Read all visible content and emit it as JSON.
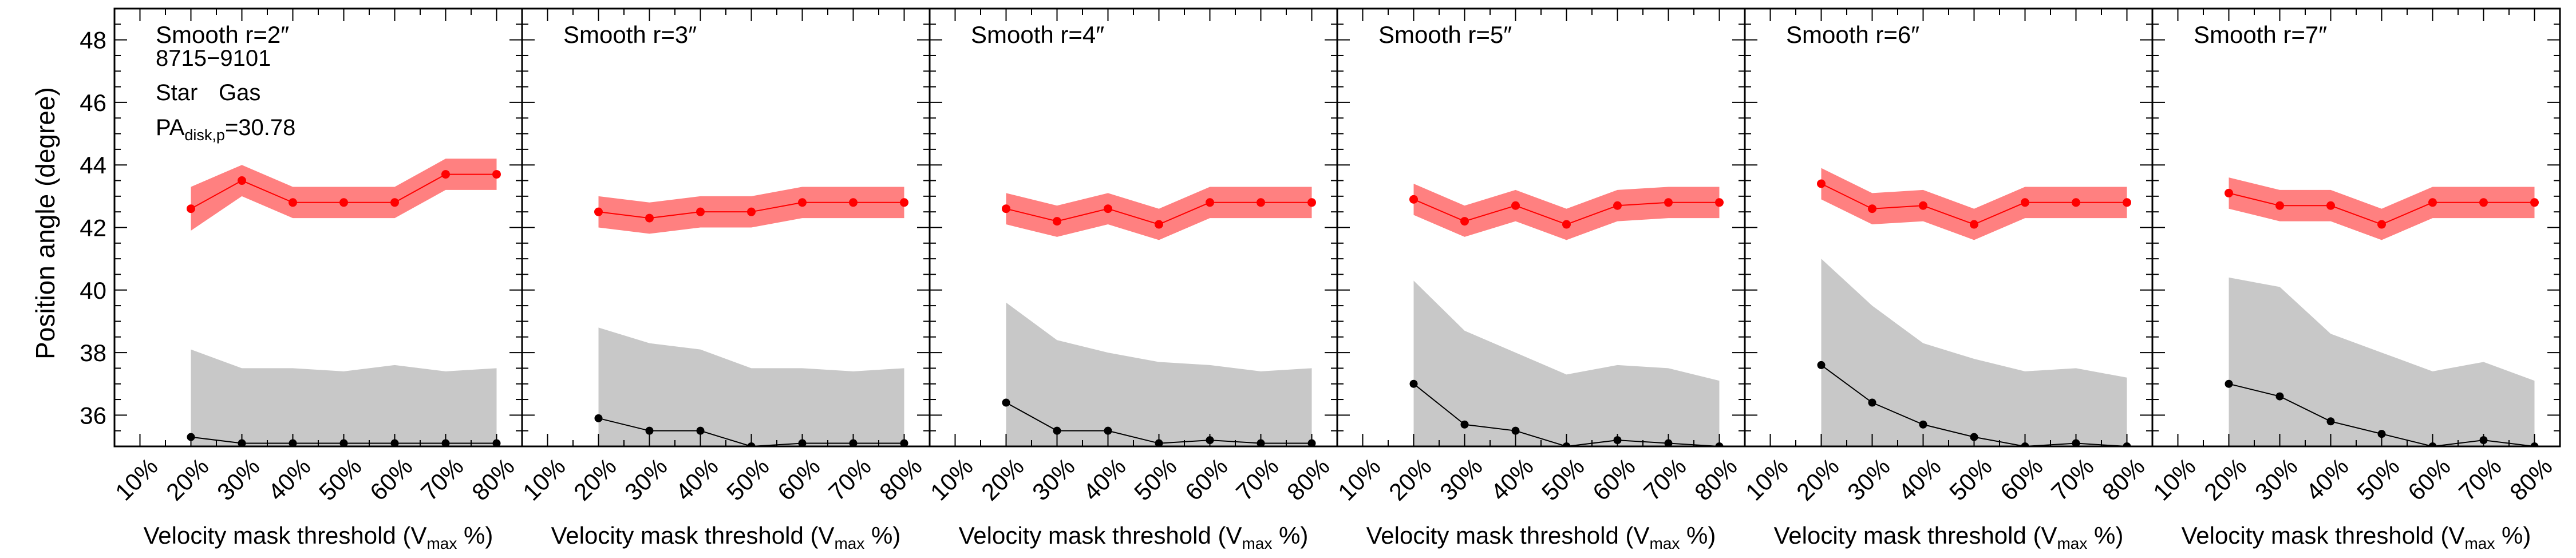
{
  "figure": {
    "ylabel": "Position angle (degree)",
    "xlabel_main": "Velocity mask threshold (V",
    "xlabel_sub": "max",
    "xlabel_end": " %)",
    "info": {
      "id": "8715−9101",
      "star": "Star",
      "gas": "Gas",
      "pa_main": "PA",
      "pa_sub": "disk,p",
      "pa_value": "=30.78"
    },
    "colors": {
      "gas": "#ff0000",
      "gas_band": "#ff8080",
      "star": "#000000",
      "star_band": "#c8c8c8"
    }
  },
  "chart_data": [
    {
      "type": "line",
      "title": "Smooth r=2″",
      "categories": [
        "10%",
        "20%",
        "30%",
        "40%",
        "50%",
        "60%",
        "70%",
        "80%"
      ],
      "x": [
        20,
        30,
        40,
        50,
        60,
        70,
        80
      ],
      "ylim": [
        35,
        49
      ],
      "yticks": [
        36,
        38,
        40,
        42,
        44,
        46,
        48
      ],
      "series": [
        {
          "name": "Gas",
          "values": [
            42.6,
            43.5,
            42.8,
            42.8,
            42.8,
            43.7,
            43.7
          ],
          "band_lo": [
            41.9,
            43.0,
            42.3,
            42.3,
            42.3,
            43.2,
            43.2
          ],
          "band_hi": [
            43.3,
            44.0,
            43.3,
            43.3,
            43.3,
            44.2,
            44.2
          ]
        },
        {
          "name": "Star",
          "values": [
            35.3,
            35.1,
            35.1,
            35.1,
            35.1,
            35.1,
            35.1
          ],
          "band_lo": [
            35.0,
            35.0,
            35.0,
            35.0,
            35.0,
            35.0,
            35.0
          ],
          "band_hi": [
            38.1,
            37.5,
            37.5,
            37.4,
            37.6,
            37.4,
            37.5
          ]
        }
      ]
    },
    {
      "type": "line",
      "title": "Smooth r=3″",
      "categories": [
        "10%",
        "20%",
        "30%",
        "40%",
        "50%",
        "60%",
        "70%",
        "80%"
      ],
      "x": [
        20,
        30,
        40,
        50,
        60,
        70,
        80
      ],
      "ylim": [
        35,
        49
      ],
      "yticks": [
        36,
        38,
        40,
        42,
        44,
        46,
        48
      ],
      "series": [
        {
          "name": "Gas",
          "values": [
            42.5,
            42.3,
            42.5,
            42.5,
            42.8,
            42.8,
            42.8
          ],
          "band_lo": [
            42.0,
            41.8,
            42.0,
            42.0,
            42.3,
            42.3,
            42.3
          ],
          "band_hi": [
            43.0,
            42.8,
            43.0,
            43.0,
            43.3,
            43.3,
            43.3
          ]
        },
        {
          "name": "Star",
          "values": [
            35.9,
            35.5,
            35.5,
            35.0,
            35.1,
            35.1,
            35.1
          ],
          "band_lo": [
            35.0,
            35.0,
            35.0,
            35.0,
            35.0,
            35.0,
            35.0
          ],
          "band_hi": [
            38.8,
            38.3,
            38.1,
            37.5,
            37.5,
            37.4,
            37.5
          ]
        }
      ]
    },
    {
      "type": "line",
      "title": "Smooth r=4″",
      "categories": [
        "10%",
        "20%",
        "30%",
        "40%",
        "50%",
        "60%",
        "70%",
        "80%"
      ],
      "x": [
        20,
        30,
        40,
        50,
        60,
        70,
        80
      ],
      "ylim": [
        35,
        49
      ],
      "yticks": [
        36,
        38,
        40,
        42,
        44,
        46,
        48
      ],
      "series": [
        {
          "name": "Gas",
          "values": [
            42.6,
            42.2,
            42.6,
            42.1,
            42.8,
            42.8,
            42.8
          ],
          "band_lo": [
            42.1,
            41.7,
            42.1,
            41.6,
            42.3,
            42.3,
            42.3
          ],
          "band_hi": [
            43.1,
            42.7,
            43.1,
            42.6,
            43.3,
            43.3,
            43.3
          ]
        },
        {
          "name": "Star",
          "values": [
            36.4,
            35.5,
            35.5,
            35.1,
            35.2,
            35.1,
            35.1
          ],
          "band_lo": [
            35.0,
            35.0,
            35.0,
            35.0,
            35.0,
            35.0,
            35.0
          ],
          "band_hi": [
            39.6,
            38.4,
            38.0,
            37.7,
            37.6,
            37.4,
            37.5
          ]
        }
      ]
    },
    {
      "type": "line",
      "title": "Smooth r=5″",
      "categories": [
        "10%",
        "20%",
        "30%",
        "40%",
        "50%",
        "60%",
        "70%",
        "80%"
      ],
      "x": [
        20,
        30,
        40,
        50,
        60,
        70,
        80
      ],
      "ylim": [
        35,
        49
      ],
      "yticks": [
        36,
        38,
        40,
        42,
        44,
        46,
        48
      ],
      "series": [
        {
          "name": "Gas",
          "values": [
            42.9,
            42.2,
            42.7,
            42.1,
            42.7,
            42.8,
            42.8
          ],
          "band_lo": [
            42.4,
            41.7,
            42.2,
            41.6,
            42.2,
            42.3,
            42.3
          ],
          "band_hi": [
            43.4,
            42.7,
            43.2,
            42.6,
            43.2,
            43.3,
            43.3
          ]
        },
        {
          "name": "Star",
          "values": [
            37.0,
            35.7,
            35.5,
            35.0,
            35.2,
            35.1,
            35.0
          ],
          "band_lo": [
            35.0,
            35.0,
            35.0,
            35.0,
            35.0,
            35.0,
            35.0
          ],
          "band_hi": [
            40.3,
            38.7,
            38.0,
            37.3,
            37.6,
            37.5,
            37.1
          ]
        }
      ]
    },
    {
      "type": "line",
      "title": "Smooth r=6″",
      "categories": [
        "10%",
        "20%",
        "30%",
        "40%",
        "50%",
        "60%",
        "70%",
        "80%"
      ],
      "x": [
        20,
        30,
        40,
        50,
        60,
        70,
        80
      ],
      "ylim": [
        35,
        49
      ],
      "yticks": [
        36,
        38,
        40,
        42,
        44,
        46,
        48
      ],
      "series": [
        {
          "name": "Gas",
          "values": [
            43.4,
            42.6,
            42.7,
            42.1,
            42.8,
            42.8,
            42.8
          ],
          "band_lo": [
            42.9,
            42.1,
            42.2,
            41.6,
            42.3,
            42.3,
            42.3
          ],
          "band_hi": [
            43.9,
            43.1,
            43.2,
            42.6,
            43.3,
            43.3,
            43.3
          ]
        },
        {
          "name": "Star",
          "values": [
            37.6,
            36.4,
            35.7,
            35.3,
            35.0,
            35.1,
            35.0
          ],
          "band_lo": [
            35.0,
            35.0,
            35.0,
            35.0,
            35.0,
            35.0,
            35.0
          ],
          "band_hi": [
            41.0,
            39.5,
            38.3,
            37.8,
            37.4,
            37.5,
            37.2
          ]
        }
      ]
    },
    {
      "type": "line",
      "title": "Smooth r=7″",
      "categories": [
        "10%",
        "20%",
        "30%",
        "40%",
        "50%",
        "60%",
        "70%",
        "80%"
      ],
      "x": [
        20,
        30,
        40,
        50,
        60,
        70,
        80
      ],
      "ylim": [
        35,
        49
      ],
      "yticks": [
        36,
        38,
        40,
        42,
        44,
        46,
        48
      ],
      "series": [
        {
          "name": "Gas",
          "values": [
            43.1,
            42.7,
            42.7,
            42.1,
            42.8,
            42.8,
            42.8
          ],
          "band_lo": [
            42.6,
            42.2,
            42.2,
            41.6,
            42.3,
            42.3,
            42.3
          ],
          "band_hi": [
            43.6,
            43.2,
            43.2,
            42.6,
            43.3,
            43.3,
            43.3
          ]
        },
        {
          "name": "Star",
          "values": [
            37.0,
            36.6,
            35.8,
            35.4,
            35.0,
            35.2,
            35.0
          ],
          "band_lo": [
            35.0,
            35.0,
            35.0,
            35.0,
            35.0,
            35.0,
            35.0
          ],
          "band_hi": [
            40.4,
            40.1,
            38.6,
            38.0,
            37.4,
            37.7,
            37.1
          ]
        }
      ]
    }
  ]
}
